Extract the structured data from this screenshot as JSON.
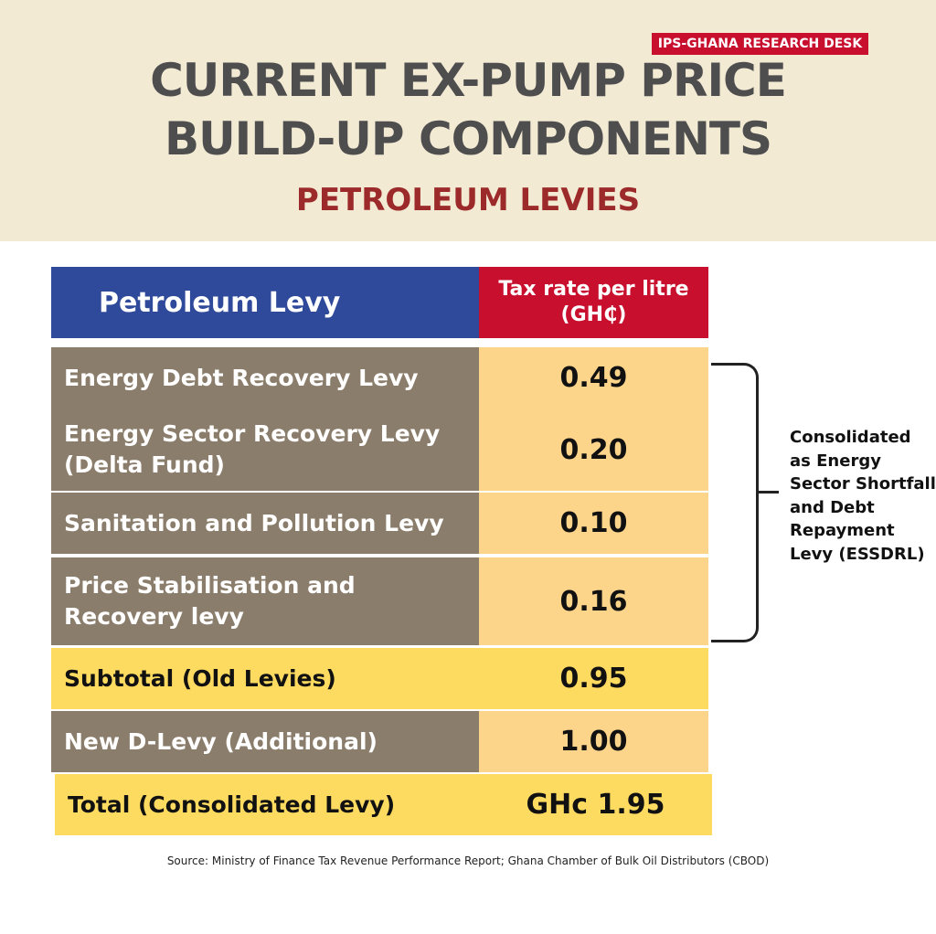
{
  "badge": "IPS-GHANA RESEARCH DESK",
  "title_line1": "CURRENT EX-PUMP PRICE",
  "title_line2": "BUILD-UP COMPONENTS",
  "subtitle": "PETROLEUM LEVIES",
  "table": {
    "col_levy": "Petroleum Levy",
    "col_rate": "Tax rate per litre (GH₵)",
    "rows": [
      {
        "label": "Energy Debt Recovery Levy",
        "value": "0.49"
      },
      {
        "label": "Energy Sector Recovery Levy (Delta Fund)",
        "value": "0.20"
      },
      {
        "label": "Sanitation and Pollution Levy",
        "value": "0.10"
      },
      {
        "label": "Price Stabilisation and Recovery levy",
        "value": "0.16"
      },
      {
        "label": "Subtotal (Old Levies)",
        "value": "0.95"
      },
      {
        "label": "New D-Levy (Additional)",
        "value": "1.00"
      },
      {
        "label": "Total (Consolidated Levy)",
        "value": "GHc 1.95"
      }
    ]
  },
  "bracket_note": "Consolidated as Energy Sector Shortfall and Debt Repayment Levy (ESSDRL)",
  "source": "Source: Ministry of Finance Tax Revenue Performance Report; Ghana Chamber of Bulk Oil Distributors (CBOD)",
  "colors": {
    "header_bg": "#f3ead4",
    "levy_header": "#2f4a9b",
    "rate_header": "#c8102e",
    "row_label": "#8b7d6b",
    "row_value": "#fdd58a",
    "highlight": "#fddb60",
    "subtitle": "#9c2a2a"
  }
}
